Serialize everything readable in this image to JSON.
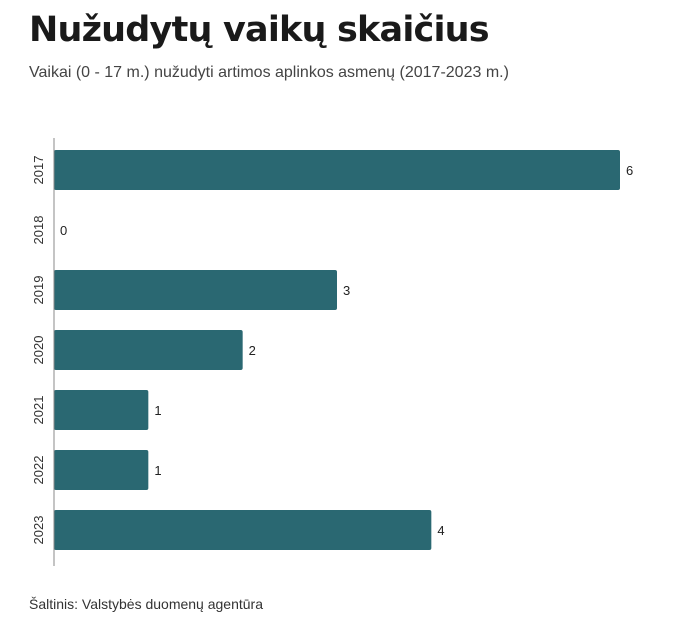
{
  "title": "Nužudytų vaikų skaičius",
  "subtitle": "Vaikai (0 - 17 m.) nužudyti artimos aplinkos asmenų (2017-2023 m.)",
  "source": "Šaltinis: Valstybės duomenų agentūra",
  "colors": {
    "bar": "#2a6872",
    "axis": "#888888",
    "label": "#222222"
  },
  "chart_data": {
    "type": "bar",
    "orientation": "horizontal",
    "categories": [
      "2017",
      "2018",
      "2019",
      "2020",
      "2021",
      "2022",
      "2023"
    ],
    "values": [
      6,
      0,
      3,
      2,
      1,
      1,
      4
    ],
    "data_labels": [
      "6",
      "0",
      "3",
      "2",
      "1",
      "1",
      "4"
    ],
    "title": "Nužudytų vaikų skaičius",
    "subtitle": "Vaikai (0 - 17 m.) nužudyti artimos aplinkos asmenų (2017-2023 m.)",
    "xlim": [
      0,
      6
    ],
    "grid": false,
    "legend": "none"
  }
}
